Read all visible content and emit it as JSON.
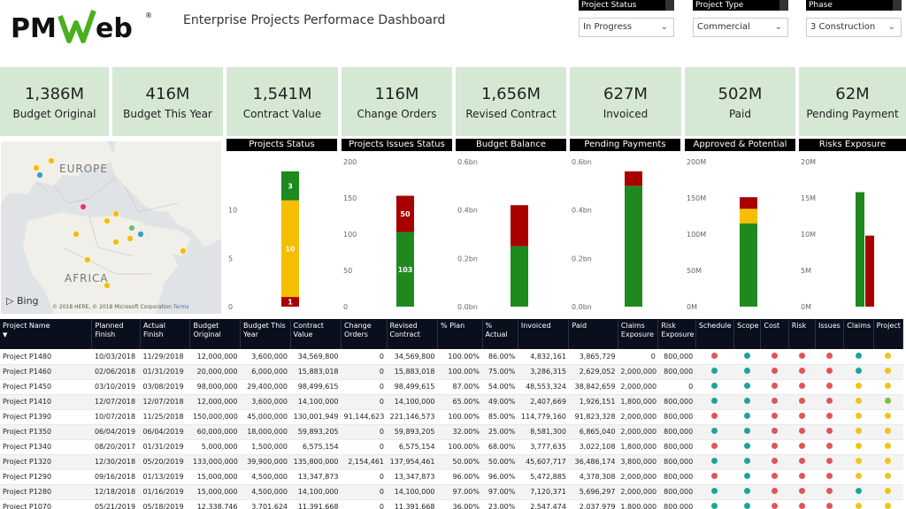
{
  "header": {
    "logo_text": "PMWeb",
    "title": "Enterprise Projects Performace Dashboard"
  },
  "filters": [
    {
      "label": "Project Status",
      "value": "In Progress"
    },
    {
      "label": "Project Type",
      "value": "Commercial"
    },
    {
      "label": "Phase",
      "value": "3 Construction"
    }
  ],
  "kpis": [
    {
      "value": "1,386M",
      "label": "Budget Original"
    },
    {
      "value": "416M",
      "label": "Budget This Year"
    },
    {
      "value": "1,541M",
      "label": "Contract Value"
    },
    {
      "value": "116M",
      "label": "Change Orders"
    },
    {
      "value": "1,656M",
      "label": "Revised Contract"
    },
    {
      "value": "627M",
      "label": "Invoiced"
    },
    {
      "value": "502M",
      "label": "Paid"
    },
    {
      "value": "62M",
      "label": "Pending Payment"
    }
  ],
  "map": {
    "labels": [
      "EUROPE",
      "AFRICA"
    ],
    "provider": "Bing",
    "copyright": "© 2018 HERE, © 2018 Microsoft Corporation",
    "terms": "Terms"
  },
  "colors": {
    "green": "#1e8a1e",
    "yellow": "#f5be00",
    "red": "#a80000",
    "kpi_bg": "#d5e8d4"
  },
  "chart_data": [
    {
      "type": "bar",
      "title": "Projects Status",
      "yticks": [
        "10",
        "5",
        "0"
      ],
      "ylim": [
        0,
        15
      ],
      "series": [
        {
          "color": "red",
          "value": 1
        },
        {
          "color": "yellow",
          "value": 10
        },
        {
          "color": "green",
          "value": 3
        }
      ],
      "segment_labels": [
        "1",
        "10",
        "3"
      ]
    },
    {
      "type": "bar",
      "title": "Projects Issues Status",
      "yticks": [
        "200",
        "150",
        "100",
        "50",
        "0"
      ],
      "ylim": [
        0,
        200
      ],
      "series": [
        {
          "color": "green",
          "value": 103
        },
        {
          "color": "red",
          "value": 50
        }
      ],
      "segment_labels": [
        "103",
        "50"
      ]
    },
    {
      "type": "bar",
      "title": "Budget Balance",
      "yticks": [
        "0.6bn",
        "0.4bn",
        "0.2bn",
        "0.0bn"
      ],
      "ylim": [
        0,
        0.6
      ],
      "series": [
        {
          "color": "green",
          "value": 0.25
        },
        {
          "color": "red",
          "value": 0.17
        }
      ]
    },
    {
      "type": "bar",
      "title": "Pending Payments",
      "yticks": [
        "0.6bn",
        "0.4bn",
        "0.2bn",
        "0.0bn"
      ],
      "ylim": [
        0,
        0.6
      ],
      "series": [
        {
          "color": "green",
          "value": 0.5
        },
        {
          "color": "red",
          "value": 0.06
        }
      ]
    },
    {
      "type": "bar",
      "title": "Approved & Potential",
      "yticks": [
        "200M",
        "150M",
        "100M",
        "50M",
        "0M"
      ],
      "ylim": [
        0,
        200
      ],
      "series": [
        {
          "color": "green",
          "value": 115
        },
        {
          "color": "yellow",
          "value": 20
        },
        {
          "color": "red",
          "value": 16
        }
      ]
    },
    {
      "type": "bar",
      "title": "Risks Exposure",
      "yticks": [
        "20M",
        "15M",
        "10M",
        "5M",
        "0M"
      ],
      "ylim": [
        0,
        20
      ],
      "bars": [
        {
          "color": "green",
          "value": 15.8
        },
        {
          "color": "red",
          "value": 9.8
        }
      ]
    }
  ],
  "table": {
    "columns": [
      "Project Name",
      "Planned Finish",
      "Actual Finish",
      "Budget Original",
      "Budget This Year",
      "Contract Value",
      "Change Orders",
      "Revised Contract",
      "% Plan",
      "% Actual",
      "Invoiced",
      "Paid",
      "Claims Exposure",
      "Risk Exposure",
      "Schedule",
      "Scope",
      "Cost",
      "Risk",
      "Issues",
      "Claims",
      "Project"
    ],
    "rows": [
      {
        "cells": [
          "Project P1480",
          "10/03/2018",
          "11/29/2018",
          "12,000,000",
          "3,600,000",
          "34,569,800",
          "0",
          "34,569,800",
          "100.00%",
          "86.00%",
          "4,832,161",
          "3,865,729",
          "0",
          "800,000"
        ],
        "dots": [
          "red",
          "teal",
          "red",
          "red",
          "red",
          "teal",
          "yellow"
        ]
      },
      {
        "cells": [
          "Project P1460",
          "02/06/2018",
          "01/31/2019",
          "20,000,000",
          "6,000,000",
          "15,883,018",
          "0",
          "15,883,018",
          "100.00%",
          "75.00%",
          "3,286,315",
          "2,629,052",
          "2,000,000",
          "800,000"
        ],
        "dots": [
          "teal",
          "teal",
          "red",
          "red",
          "red",
          "teal",
          "yellow"
        ]
      },
      {
        "cells": [
          "Project P1450",
          "03/10/2019",
          "03/08/2019",
          "98,000,000",
          "29,400,000",
          "98,499,615",
          "0",
          "98,499,615",
          "87.00%",
          "54.00%",
          "48,553,324",
          "38,842,659",
          "2,000,000",
          "0"
        ],
        "dots": [
          "teal",
          "teal",
          "red",
          "red",
          "red",
          "yellow",
          "yellow"
        ]
      },
      {
        "cells": [
          "Project P1410",
          "12/07/2018",
          "12/07/2018",
          "12,000,000",
          "3,600,000",
          "14,100,000",
          "0",
          "14,100,000",
          "65.00%",
          "49.00%",
          "2,407,669",
          "1,926,151",
          "1,800,000",
          "800,000"
        ],
        "dots": [
          "teal",
          "teal",
          "red",
          "red",
          "red",
          "yellow",
          "green"
        ]
      },
      {
        "cells": [
          "Project P1390",
          "10/07/2018",
          "11/25/2018",
          "150,000,000",
          "45,000,000",
          "130,001,949",
          "91,144,623",
          "221,146,573",
          "100.00%",
          "85.00%",
          "114,779,160",
          "91,823,328",
          "2,000,000",
          "800,000"
        ],
        "dots": [
          "red",
          "teal",
          "red",
          "red",
          "red",
          "yellow",
          "yellow"
        ]
      },
      {
        "cells": [
          "Project P1350",
          "06/04/2019",
          "06/04/2019",
          "60,000,000",
          "18,000,000",
          "59,893,205",
          "0",
          "59,893,205",
          "32.00%",
          "25.00%",
          "8,581,300",
          "6,865,040",
          "2,000,000",
          "800,000"
        ],
        "dots": [
          "teal",
          "teal",
          "red",
          "red",
          "red",
          "yellow",
          "yellow"
        ]
      },
      {
        "cells": [
          "Project P1340",
          "08/20/2017",
          "01/31/2019",
          "5,000,000",
          "1,500,000",
          "6,575,154",
          "0",
          "6,575,154",
          "100.00%",
          "68.00%",
          "3,777,635",
          "3,022,108",
          "1,800,000",
          "800,000"
        ],
        "dots": [
          "red",
          "teal",
          "red",
          "red",
          "red",
          "yellow",
          "yellow"
        ]
      },
      {
        "cells": [
          "Project P1320",
          "12/30/2018",
          "05/20/2019",
          "133,000,000",
          "39,900,000",
          "135,800,000",
          "2,154,461",
          "137,954,461",
          "50.00%",
          "50.00%",
          "45,607,717",
          "36,486,174",
          "3,800,000",
          "800,000"
        ],
        "dots": [
          "teal",
          "teal",
          "red",
          "red",
          "red",
          "yellow",
          "yellow"
        ]
      },
      {
        "cells": [
          "Project P1290",
          "09/16/2018",
          "01/13/2019",
          "15,000,000",
          "4,500,000",
          "13,347,873",
          "0",
          "13,347,873",
          "96.00%",
          "96.00%",
          "5,472,885",
          "4,378,308",
          "2,000,000",
          "800,000"
        ],
        "dots": [
          "red",
          "teal",
          "red",
          "red",
          "red",
          "yellow",
          "yellow"
        ]
      },
      {
        "cells": [
          "Project P1280",
          "12/18/2018",
          "01/16/2019",
          "15,000,000",
          "4,500,000",
          "14,100,000",
          "0",
          "14,100,000",
          "97.00%",
          "97.00%",
          "7,120,371",
          "5,696,297",
          "2,000,000",
          "800,000"
        ],
        "dots": [
          "teal",
          "teal",
          "red",
          "red",
          "red",
          "teal",
          "yellow"
        ]
      },
      {
        "cells": [
          "Project P1070",
          "05/21/2019",
          "05/18/2019",
          "12,338,746",
          "3,701,624",
          "11,391,668",
          "0",
          "11,391,668",
          "36.00%",
          "23.00%",
          "2,547,474",
          "2,037,979",
          "1,800,000",
          "800,000"
        ],
        "dots": [
          "teal",
          "teal",
          "red",
          "red",
          "red",
          "yellow",
          "yellow"
        ]
      }
    ]
  }
}
